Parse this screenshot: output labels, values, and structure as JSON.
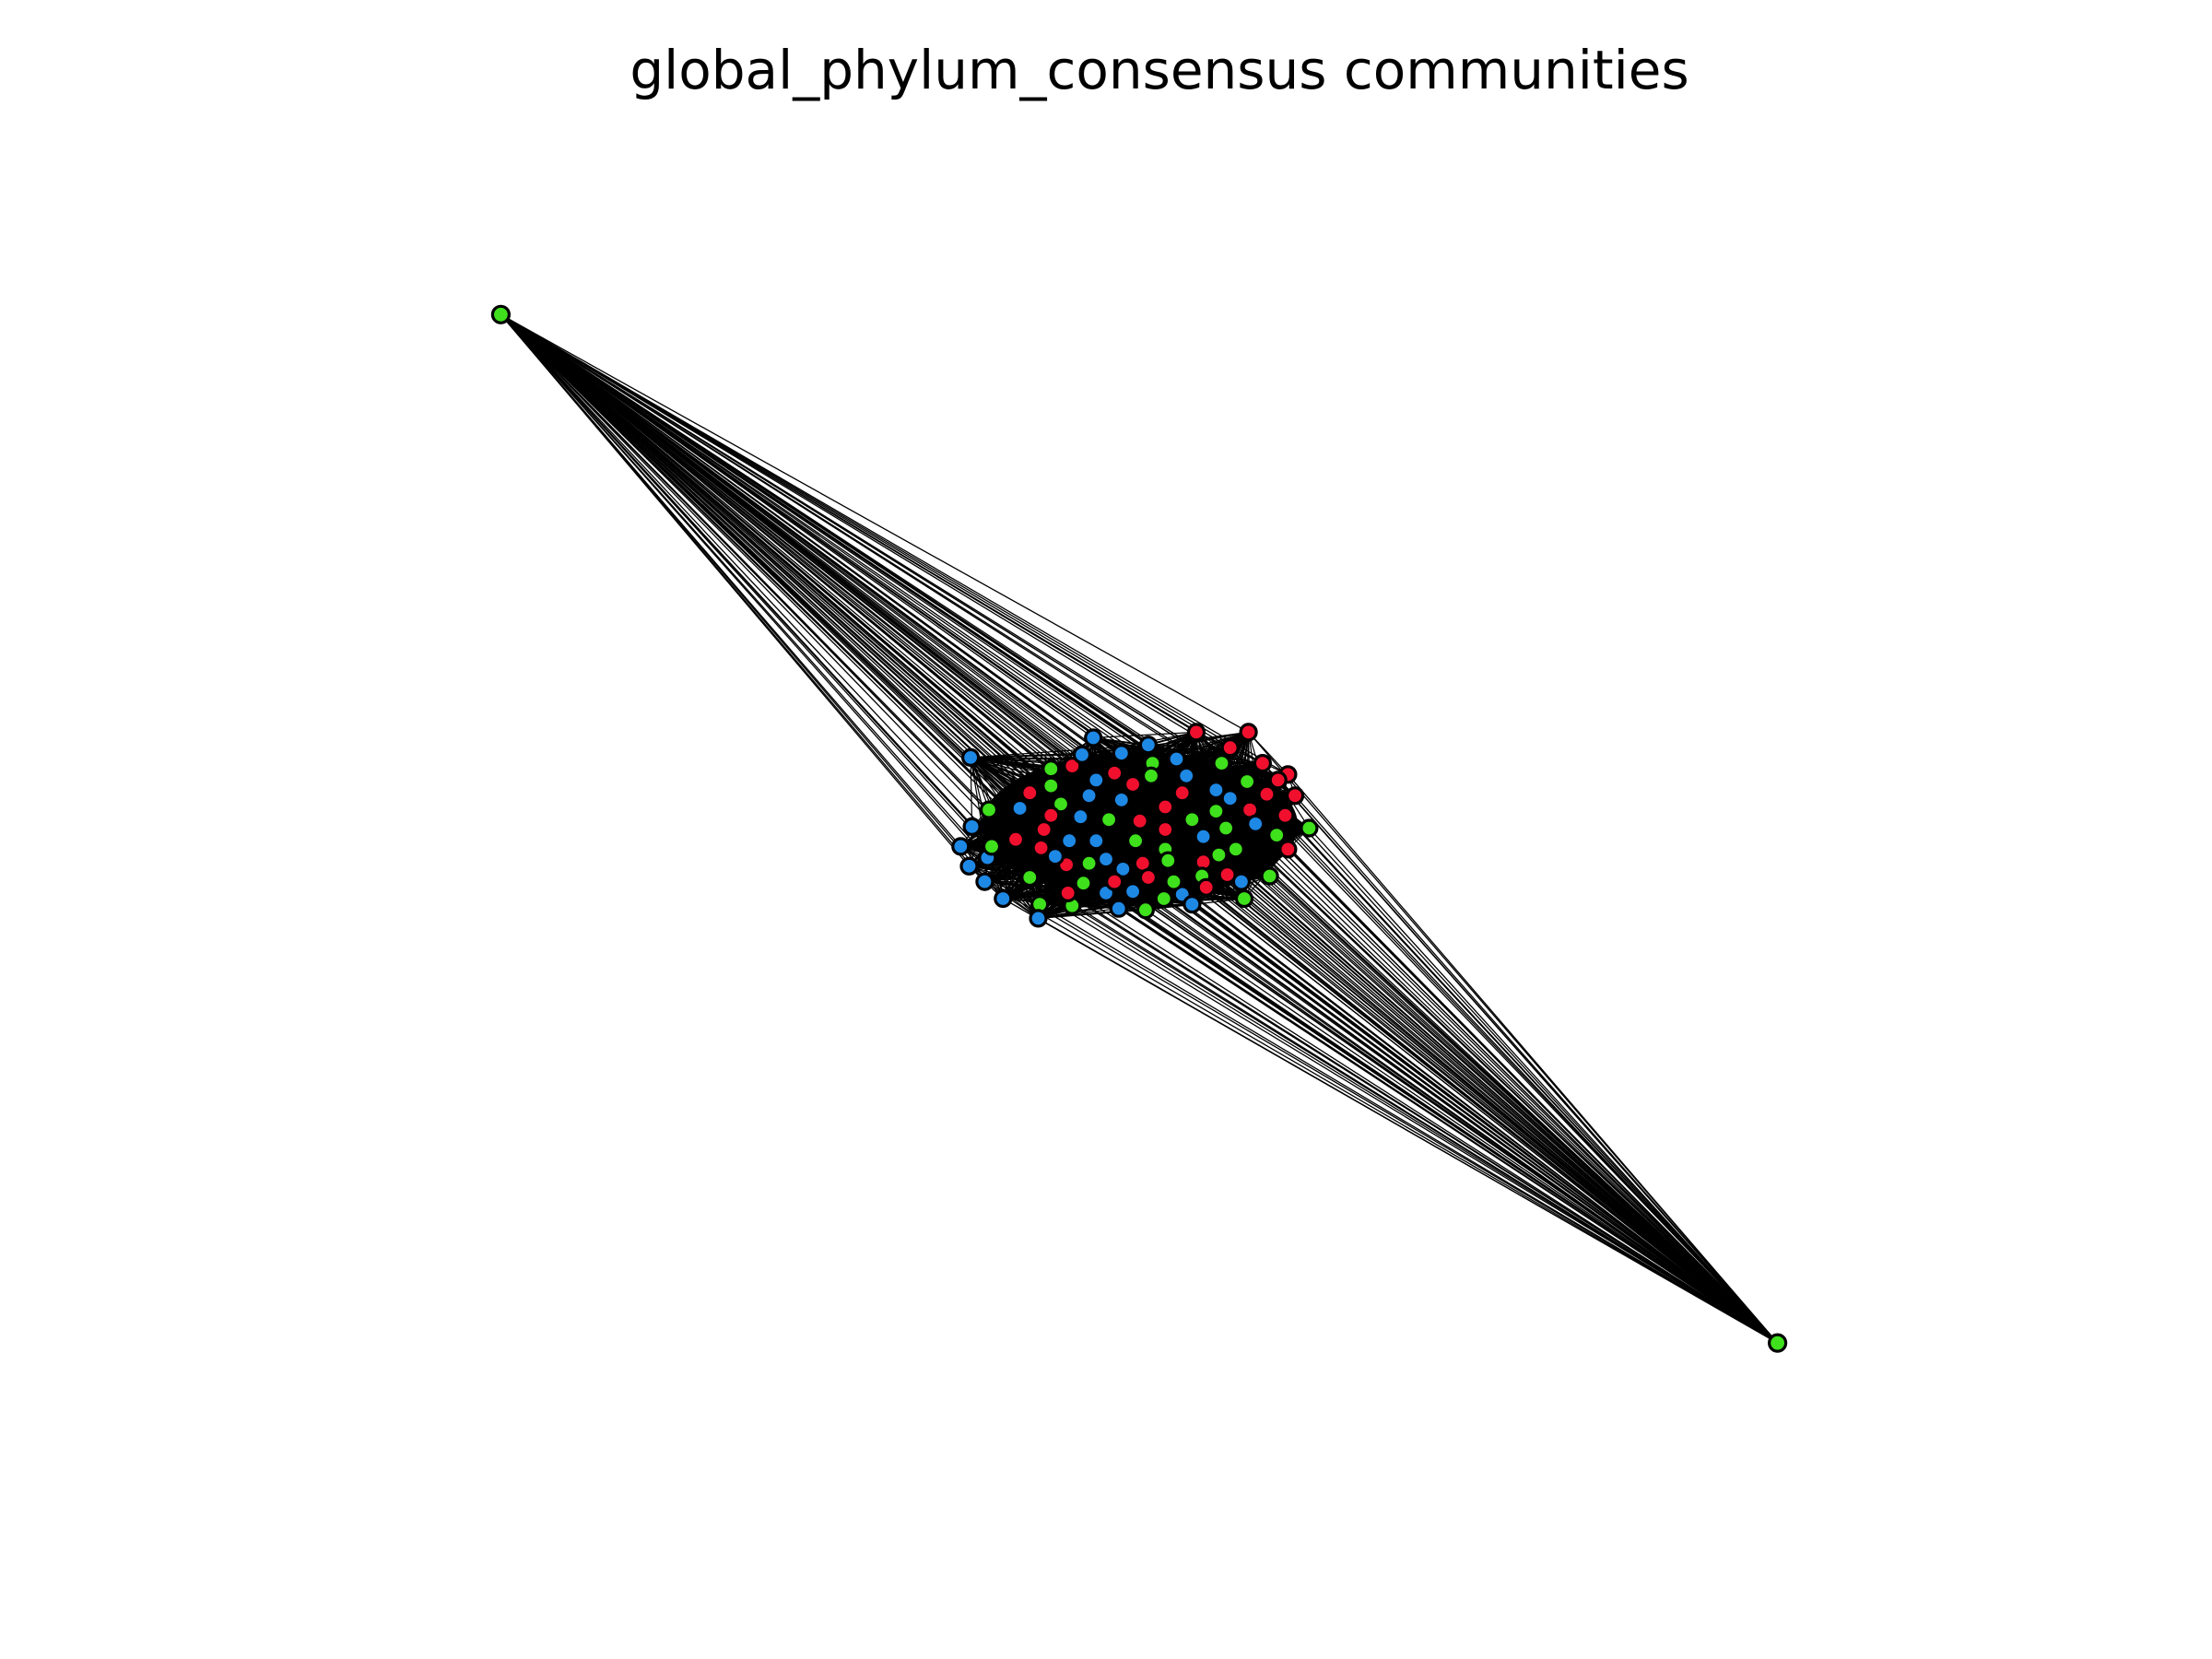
{
  "title": "global_phylum_consensus communities",
  "colors": {
    "background": "#ffffff",
    "edge": "#000000",
    "node_outline": "#000000",
    "community_blue": "#1e88e5",
    "community_green": "#3fe01c",
    "community_red": "#f0102e"
  },
  "legend": "none",
  "grid": false,
  "axes": false
}
